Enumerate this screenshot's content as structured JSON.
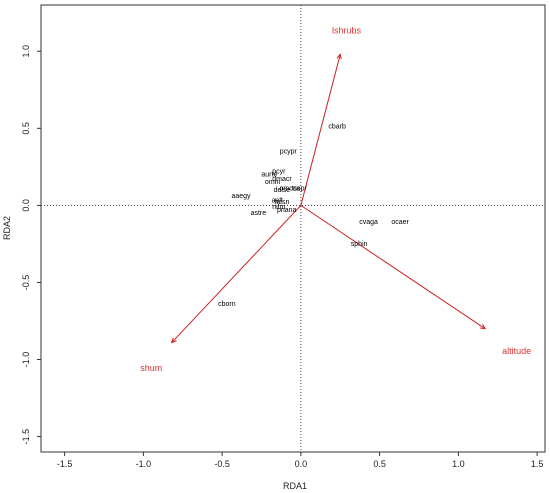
{
  "chart_data": {
    "type": "scatter",
    "title": "",
    "xlabel": "RDA1",
    "ylabel": "RDA2",
    "xlim": [
      -1.65,
      1.55
    ],
    "ylim": [
      -1.6,
      1.3
    ],
    "xticks": [
      -1.5,
      -1.0,
      -0.5,
      0.0,
      0.5,
      1.0,
      1.5
    ],
    "xtick_labels": [
      "-1.5",
      "-1.0",
      "-0.5",
      "0.0",
      "0.5",
      "1.0",
      "1.5"
    ],
    "yticks": [
      -1.5,
      -1.0,
      -0.5,
      0.0,
      0.5,
      1.0
    ],
    "ytick_labels": [
      "-1.5",
      "-1.0",
      "-0.5",
      "0.0",
      "0.5",
      "1.0"
    ],
    "zero_lines": true,
    "grid": false,
    "species": [
      {
        "name": "pcypr",
        "x": -0.08,
        "y": 0.35
      },
      {
        "name": "cbarb",
        "x": 0.23,
        "y": 0.51
      },
      {
        "name": "pcyr",
        "x": -0.14,
        "y": 0.22
      },
      {
        "name": "aurte",
        "x": -0.2,
        "y": 0.2
      },
      {
        "name": "dmacr",
        "x": -0.12,
        "y": 0.17
      },
      {
        "name": "omni",
        "x": -0.18,
        "y": 0.15
      },
      {
        "name": "delse",
        "x": -0.12,
        "y": 0.1
      },
      {
        "name": "pmcca",
        "x": -0.07,
        "y": 0.11
      },
      {
        "name": "tscpr",
        "x": -0.01,
        "y": 0.11
      },
      {
        "name": "aaegy",
        "x": -0.38,
        "y": 0.06
      },
      {
        "name": "aalt",
        "x": -0.15,
        "y": 0.03
      },
      {
        "name": "hcsn",
        "x": -0.12,
        "y": 0.02
      },
      {
        "name": "nifm",
        "x": -0.14,
        "y": -0.01
      },
      {
        "name": "pnana",
        "x": -0.09,
        "y": -0.03
      },
      {
        "name": "astre",
        "x": -0.27,
        "y": -0.05
      },
      {
        "name": "cvaga",
        "x": 0.43,
        "y": -0.11
      },
      {
        "name": "ocaer",
        "x": 0.63,
        "y": -0.11
      },
      {
        "name": "sphin",
        "x": 0.37,
        "y": -0.25
      },
      {
        "name": "cborn",
        "x": -0.47,
        "y": -0.64
      }
    ],
    "environment_vectors": [
      {
        "name": "lshrubs",
        "x": 0.25,
        "y": 0.98,
        "label_x": 0.29,
        "label_y": 1.13
      },
      {
        "name": "altitude",
        "x": 1.17,
        "y": -0.8,
        "label_x": 1.37,
        "label_y": -0.95
      },
      {
        "name": "shum",
        "x": -0.82,
        "y": -0.89,
        "label_x": -0.95,
        "label_y": -1.06
      }
    ],
    "colors": {
      "axes": "#333333",
      "species_text": "#000000",
      "vectors": "#cc2222",
      "vector_labels": "#dd3333"
    }
  }
}
